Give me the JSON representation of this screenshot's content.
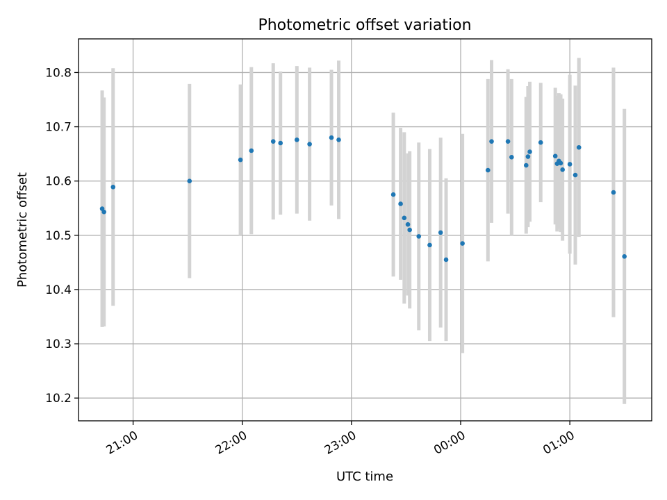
{
  "chart_data": {
    "type": "scatter",
    "title": "Photometric offset variation",
    "xlabel": "UTC time",
    "ylabel": "Photometric offset",
    "x_ticks": [
      "21:00",
      "22:00",
      "23:00",
      "00:00",
      "01:00"
    ],
    "y_ticks": [
      "10.2",
      "10.3",
      "10.4",
      "10.5",
      "10.6",
      "10.7",
      "10.8"
    ],
    "xlim_minutes_from_2100": [
      -30,
      285
    ],
    "ylim": [
      10.158,
      10.862
    ],
    "grid": true,
    "marker_color": "#1f77b4",
    "errorbar_color": "#d3d3d3",
    "points": [
      {
        "t": "20:43",
        "y": 10.549,
        "err": 0.218
      },
      {
        "t": "20:44",
        "y": 10.543,
        "err": 0.211
      },
      {
        "t": "20:49",
        "y": 10.589,
        "err": 0.219
      },
      {
        "t": "21:31",
        "y": 10.6,
        "err": 0.179
      },
      {
        "t": "21:59",
        "y": 10.639,
        "err": 0.139
      },
      {
        "t": "22:05",
        "y": 10.656,
        "err": 0.154
      },
      {
        "t": "22:17",
        "y": 10.673,
        "err": 0.144
      },
      {
        "t": "22:21",
        "y": 10.67,
        "err": 0.132
      },
      {
        "t": "22:30",
        "y": 10.676,
        "err": 0.136
      },
      {
        "t": "22:37",
        "y": 10.668,
        "err": 0.141
      },
      {
        "t": "22:49",
        "y": 10.68,
        "err": 0.125
      },
      {
        "t": "22:53",
        "y": 10.676,
        "err": 0.146
      },
      {
        "t": "23:23",
        "y": 10.575,
        "err": 0.151
      },
      {
        "t": "23:27",
        "y": 10.558,
        "err": 0.14
      },
      {
        "t": "23:29",
        "y": 10.532,
        "err": 0.158
      },
      {
        "t": "23:31",
        "y": 10.52,
        "err": 0.131
      },
      {
        "t": "23:32",
        "y": 10.51,
        "err": 0.145
      },
      {
        "t": "23:37",
        "y": 10.498,
        "err": 0.173
      },
      {
        "t": "23:43",
        "y": 10.482,
        "err": 0.177
      },
      {
        "t": "23:49",
        "y": 10.505,
        "err": 0.175
      },
      {
        "t": "23:52",
        "y": 10.455,
        "err": 0.15
      },
      {
        "t": "00:01",
        "y": 10.485,
        "err": 0.202
      },
      {
        "t": "00:15",
        "y": 10.62,
        "err": 0.168
      },
      {
        "t": "00:17",
        "y": 10.673,
        "err": 0.15
      },
      {
        "t": "00:26",
        "y": 10.673,
        "err": 0.133
      },
      {
        "t": "00:28",
        "y": 10.644,
        "err": 0.144
      },
      {
        "t": "00:36",
        "y": 10.629,
        "err": 0.126
      },
      {
        "t": "00:37",
        "y": 10.645,
        "err": 0.13
      },
      {
        "t": "00:38",
        "y": 10.654,
        "err": 0.129
      },
      {
        "t": "00:44",
        "y": 10.671,
        "err": 0.11
      },
      {
        "t": "00:52",
        "y": 10.646,
        "err": 0.126
      },
      {
        "t": "00:53",
        "y": 10.632,
        "err": 0.125
      },
      {
        "t": "00:54",
        "y": 10.637,
        "err": 0.125
      },
      {
        "t": "00:55",
        "y": 10.633,
        "err": 0.127
      },
      {
        "t": "00:56",
        "y": 10.621,
        "err": 0.131
      },
      {
        "t": "01:00",
        "y": 10.631,
        "err": 0.165
      },
      {
        "t": "01:03",
        "y": 10.611,
        "err": 0.165
      },
      {
        "t": "01:05",
        "y": 10.662,
        "err": 0.165
      },
      {
        "t": "01:24",
        "y": 10.579,
        "err": 0.23
      },
      {
        "t": "01:30",
        "y": 10.461,
        "err": 0.272
      }
    ]
  }
}
